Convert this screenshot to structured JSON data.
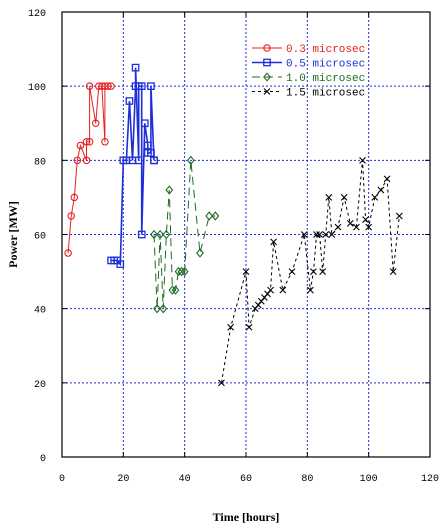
{
  "chart_data": {
    "type": "line",
    "title": "",
    "xlabel": "Time [hours]",
    "ylabel": "Power [MW]",
    "xlim": [
      0,
      120
    ],
    "ylim": [
      0,
      120
    ],
    "xticks": [
      0,
      20,
      40,
      60,
      80,
      100,
      120
    ],
    "yticks": [
      0,
      20,
      40,
      60,
      80,
      100,
      120
    ],
    "xtick_labels": [
      "0",
      "20",
      "40",
      "60",
      "80",
      "100",
      "120"
    ],
    "ytick_labels": [
      "0",
      "20",
      "40",
      "60",
      "80",
      "100",
      "120"
    ],
    "grid": true,
    "legend_position": "top-right",
    "series": [
      {
        "name": "0.3 microsec",
        "color": "#e8201e",
        "marker": "circle",
        "dash": "solid",
        "x": [
          2,
          3,
          4,
          5,
          6,
          8,
          8,
          9,
          9,
          11,
          12,
          13,
          14,
          14,
          15,
          16
        ],
        "y": [
          55,
          65,
          70,
          80,
          84,
          80,
          85,
          85,
          100,
          90,
          100,
          100,
          85,
          100,
          100,
          100
        ]
      },
      {
        "name": "0.5 microsec",
        "color": "#1e2ed8",
        "marker": "square",
        "dash": "solid",
        "x": [
          16,
          17,
          18,
          19,
          20,
          21,
          22,
          23,
          24,
          24,
          25,
          25,
          26,
          26,
          27,
          28,
          28,
          29,
          29,
          30,
          30
        ],
        "y": [
          53,
          53,
          53,
          52,
          80,
          80,
          96,
          80,
          100,
          105,
          80,
          100,
          100,
          60,
          90,
          84,
          82,
          82,
          100,
          80,
          80
        ]
      },
      {
        "name": "1.0 microsec",
        "color": "#1f6b23",
        "marker": "diamond",
        "dash": "longdash",
        "x": [
          30,
          31,
          32,
          33,
          34,
          35,
          36,
          37,
          38,
          39,
          40,
          42,
          45,
          48,
          50
        ],
        "y": [
          60,
          40,
          60,
          40,
          60,
          72,
          45,
          45,
          50,
          50,
          50,
          80,
          55,
          65,
          65
        ]
      },
      {
        "name": "1.5 microsec",
        "color": "#000000",
        "marker": "x",
        "dash": "shortdash",
        "x": [
          52,
          55,
          60,
          61,
          63,
          64,
          65,
          66,
          67,
          68,
          69,
          72,
          75,
          79,
          81,
          82,
          83,
          84,
          85,
          86,
          87,
          88,
          90,
          92,
          94,
          96,
          98,
          99,
          100,
          102,
          104,
          106,
          108,
          110
        ],
        "y": [
          20,
          35,
          50,
          35,
          40,
          41,
          42,
          43,
          44,
          45,
          58,
          45,
          50,
          60,
          45,
          50,
          60,
          60,
          50,
          60,
          70,
          60,
          62,
          70,
          63,
          62,
          80,
          64,
          62,
          70,
          72,
          75,
          50,
          65
        ]
      }
    ]
  }
}
